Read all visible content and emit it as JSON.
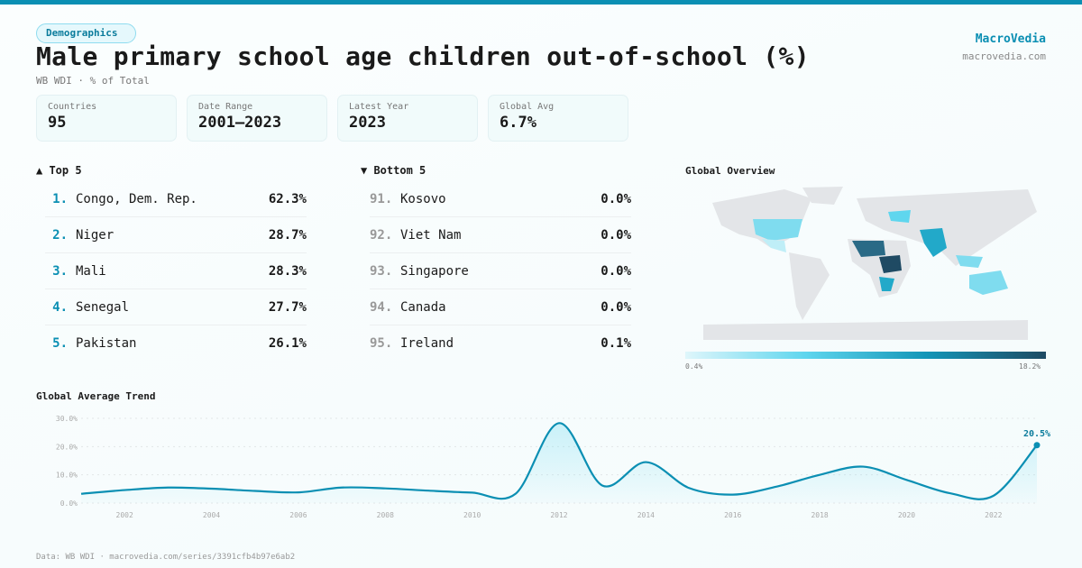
{
  "category_badge": "Demographics",
  "title": "Male primary school age children out-of-school (%)",
  "subtitle": "WB WDI · % of Total",
  "brand": {
    "name": "MacroVedia",
    "url": "macrovedia.com"
  },
  "stats": [
    {
      "label": "Countries",
      "value": "95"
    },
    {
      "label": "Date Range",
      "value": "2001–2023"
    },
    {
      "label": "Latest Year",
      "value": "2023"
    },
    {
      "label": "Global Avg",
      "value": "6.7%"
    }
  ],
  "top5": {
    "heading": "▲ Top 5",
    "items": [
      {
        "rank": "1.",
        "name": "Congo, Dem. Rep.",
        "value": "62.3%"
      },
      {
        "rank": "2.",
        "name": "Niger",
        "value": "28.7%"
      },
      {
        "rank": "3.",
        "name": "Mali",
        "value": "28.3%"
      },
      {
        "rank": "4.",
        "name": "Senegal",
        "value": "27.7%"
      },
      {
        "rank": "5.",
        "name": "Pakistan",
        "value": "26.1%"
      }
    ]
  },
  "bottom5": {
    "heading": "▼ Bottom 5",
    "items": [
      {
        "rank": "91.",
        "name": "Kosovo",
        "value": "0.0%"
      },
      {
        "rank": "92.",
        "name": "Viet Nam",
        "value": "0.0%"
      },
      {
        "rank": "93.",
        "name": "Singapore",
        "value": "0.0%"
      },
      {
        "rank": "94.",
        "name": "Canada",
        "value": "0.0%"
      },
      {
        "rank": "95.",
        "name": "Ireland",
        "value": "0.1%"
      }
    ]
  },
  "map": {
    "heading": "Global Overview",
    "legend_min": "0.4%",
    "legend_max": "18.2%",
    "colors": {
      "low": "#dff6fb",
      "mid": "#5fd6ee",
      "high": "#1f4a63",
      "nodata": "#e3e5e8"
    }
  },
  "chart_data": {
    "type": "area",
    "title": "Global Average Trend",
    "x": [
      2001,
      2002,
      2003,
      2004,
      2005,
      2006,
      2007,
      2008,
      2009,
      2010,
      2011,
      2012,
      2013,
      2014,
      2015,
      2016,
      2017,
      2018,
      2019,
      2020,
      2021,
      2022,
      2023
    ],
    "values": [
      3.3,
      4.6,
      5.5,
      5.1,
      4.3,
      3.8,
      5.5,
      5.2,
      4.4,
      3.7,
      3.3,
      28.3,
      6.2,
      14.5,
      5.3,
      3.0,
      5.8,
      10.0,
      12.9,
      8.2,
      3.5,
      2.6,
      20.5
    ],
    "ylim": [
      0,
      30
    ],
    "yticks": [
      "0.0%",
      "10.0%",
      "20.0%",
      "30.0%"
    ],
    "xticks": [
      "2002",
      "2004",
      "2006",
      "2008",
      "2010",
      "2012",
      "2014",
      "2016",
      "2018",
      "2020",
      "2022"
    ],
    "last_label": "20.5%",
    "grid": true,
    "color": "#0b8fb3"
  },
  "footer": "Data: WB WDI · macrovedia.com/series/3391cfb4b97e6ab2"
}
